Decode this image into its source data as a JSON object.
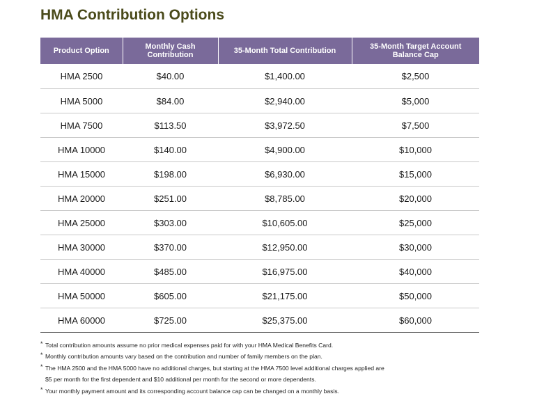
{
  "title": "HMA Contribution Options",
  "header_color": "#7a6a9a",
  "title_color": "#4a4a1a",
  "table": {
    "headers": [
      "Product Option",
      "Monthly Cash Contribution",
      "35-Month Total Contribution",
      "35-Month Target Account Balance Cap"
    ],
    "rows": [
      [
        "HMA 2500",
        "$40.00",
        "$1,400.00",
        "$2,500"
      ],
      [
        "HMA 5000",
        "$84.00",
        "$2,940.00",
        "$5,000"
      ],
      [
        "HMA 7500",
        "$113.50",
        "$3,972.50",
        "$7,500"
      ],
      [
        "HMA 10000",
        "$140.00",
        "$4,900.00",
        "$10,000"
      ],
      [
        "HMA 15000",
        "$198.00",
        "$6,930.00",
        "$15,000"
      ],
      [
        "HMA 20000",
        "$251.00",
        "$8,785.00",
        "$20,000"
      ],
      [
        "HMA 25000",
        "$303.00",
        "$10,605.00",
        "$25,000"
      ],
      [
        "HMA 30000",
        "$370.00",
        "$12,950.00",
        "$30,000"
      ],
      [
        "HMA 40000",
        "$485.00",
        "$16,975.00",
        "$40,000"
      ],
      [
        "HMA 50000",
        "$605.00",
        "$21,175.00",
        "$50,000"
      ],
      [
        "HMA 60000",
        "$725.00",
        "$25,375.00",
        "$60,000"
      ]
    ]
  },
  "footnotes": [
    "Total contribution amounts assume no prior medical expenses paid for with your HMA Medical Benefits Card.",
    "Monthly contribution amounts vary based on the contribution and number of family members on the plan.",
    "The HMA 2500 and the HMA 5000 have no additional charges, but starting at the HMA 7500 level additional charges applied are",
    "$5 per month for the first dependent and $10 additional per month for the second or more dependents.",
    "Your monthly payment amount and its corresponding account balance cap can be changed on a monthly basis."
  ],
  "bullet": "*"
}
